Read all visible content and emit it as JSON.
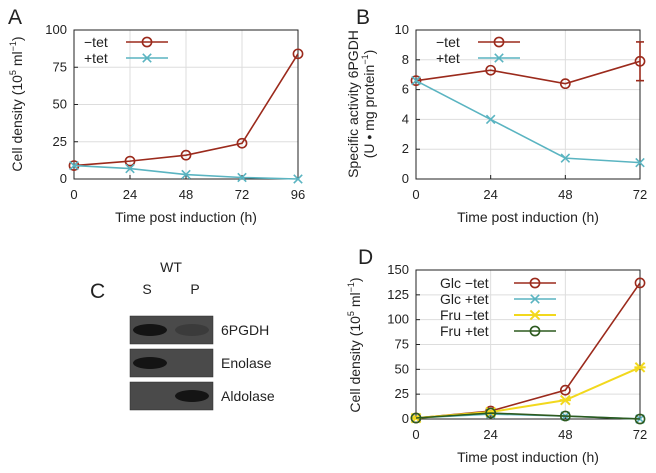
{
  "colors": {
    "minus_tet": "#9b2a1c",
    "plus_tet": "#5ab4c1",
    "fru_minus": "#f2d81d",
    "fru_plus": "#2d5a1f",
    "axis": "#222222",
    "grid": "#dddddd"
  },
  "chart_data": [
    {
      "id": "A",
      "type": "line",
      "panel_letter": "A",
      "x": [
        0,
        24,
        48,
        72,
        96
      ],
      "xticks": [
        "0",
        "24",
        "48",
        "72",
        "96"
      ],
      "yticks": [
        "0",
        "25",
        "50",
        "75",
        "100"
      ],
      "xlim": [
        0,
        96
      ],
      "ylim": [
        0,
        100
      ],
      "xlabel": "Time post induction (h)",
      "ylabel_parts": [
        "Cell density (10",
        "5",
        " ml",
        "−1",
        ")"
      ],
      "legend_position": "top-left",
      "series": [
        {
          "name": "−tet",
          "values": [
            9,
            12,
            16,
            24,
            84
          ],
          "color": "#9b2a1c",
          "marker": "circle"
        },
        {
          "name": "+tet",
          "values": [
            9,
            7,
            3,
            1,
            0
          ],
          "color": "#5ab4c1",
          "marker": "x"
        }
      ]
    },
    {
      "id": "B",
      "type": "line",
      "panel_letter": "B",
      "x": [
        0,
        24,
        48,
        72
      ],
      "xticks": [
        "0",
        "24",
        "48",
        "72"
      ],
      "yticks": [
        "0",
        "2",
        "4",
        "6",
        "8",
        "10"
      ],
      "xlim": [
        0,
        72
      ],
      "ylim": [
        0,
        10
      ],
      "xlabel": "Time post induction (h)",
      "ylabel_line1": "Specific activity 6PGDH",
      "ylabel_line2_parts": [
        "(U • mg protein",
        "−1",
        ")"
      ],
      "legend_position": "top-left",
      "series": [
        {
          "name": "−tet",
          "values": [
            6.6,
            7.3,
            6.4,
            7.9
          ],
          "errors": [
            0,
            0,
            0,
            1.3
          ],
          "color": "#9b2a1c",
          "marker": "circle"
        },
        {
          "name": "+tet",
          "values": [
            6.6,
            4.0,
            1.4,
            1.1
          ],
          "color": "#5ab4c1",
          "marker": "x"
        }
      ]
    },
    {
      "id": "D",
      "type": "line",
      "panel_letter": "D",
      "x": [
        0,
        24,
        48,
        72
      ],
      "xticks": [
        "0",
        "24",
        "48",
        "72"
      ],
      "yticks": [
        "0",
        "25",
        "50",
        "75",
        "100",
        "125",
        "150"
      ],
      "xlim": [
        0,
        72
      ],
      "ylim": [
        0,
        150
      ],
      "xlabel": "Time post induction (h)",
      "ylabel_parts": [
        "Cell density (10",
        "5",
        " ml",
        "−1",
        ")"
      ],
      "legend_position": "top-left",
      "series": [
        {
          "name": "Glc −tet",
          "values": [
            1,
            8,
            29,
            137
          ],
          "color": "#9b2a1c",
          "marker": "circle"
        },
        {
          "name": "Glc +tet",
          "values": [
            1,
            5,
            3,
            0
          ],
          "color": "#5ab4c1",
          "marker": "x"
        },
        {
          "name": "Fru −tet",
          "values": [
            1,
            7,
            19,
            52
          ],
          "color": "#f2d81d",
          "marker": "star"
        },
        {
          "name": "Fru +tet",
          "values": [
            1,
            6,
            3,
            0
          ],
          "color": "#2d5a1f",
          "marker": "circle"
        }
      ]
    }
  ],
  "blot": {
    "panel_letter": "C",
    "group_label": "WT",
    "lanes": [
      "S",
      "P"
    ],
    "rows": [
      {
        "label": "6PGDH",
        "s_intensity": 0.95,
        "p_intensity": 0.25
      },
      {
        "label": "Enolase",
        "s_intensity": 0.95,
        "p_intensity": 0.0
      },
      {
        "label": "Aldolase",
        "s_intensity": 0.0,
        "p_intensity": 0.95
      }
    ]
  }
}
